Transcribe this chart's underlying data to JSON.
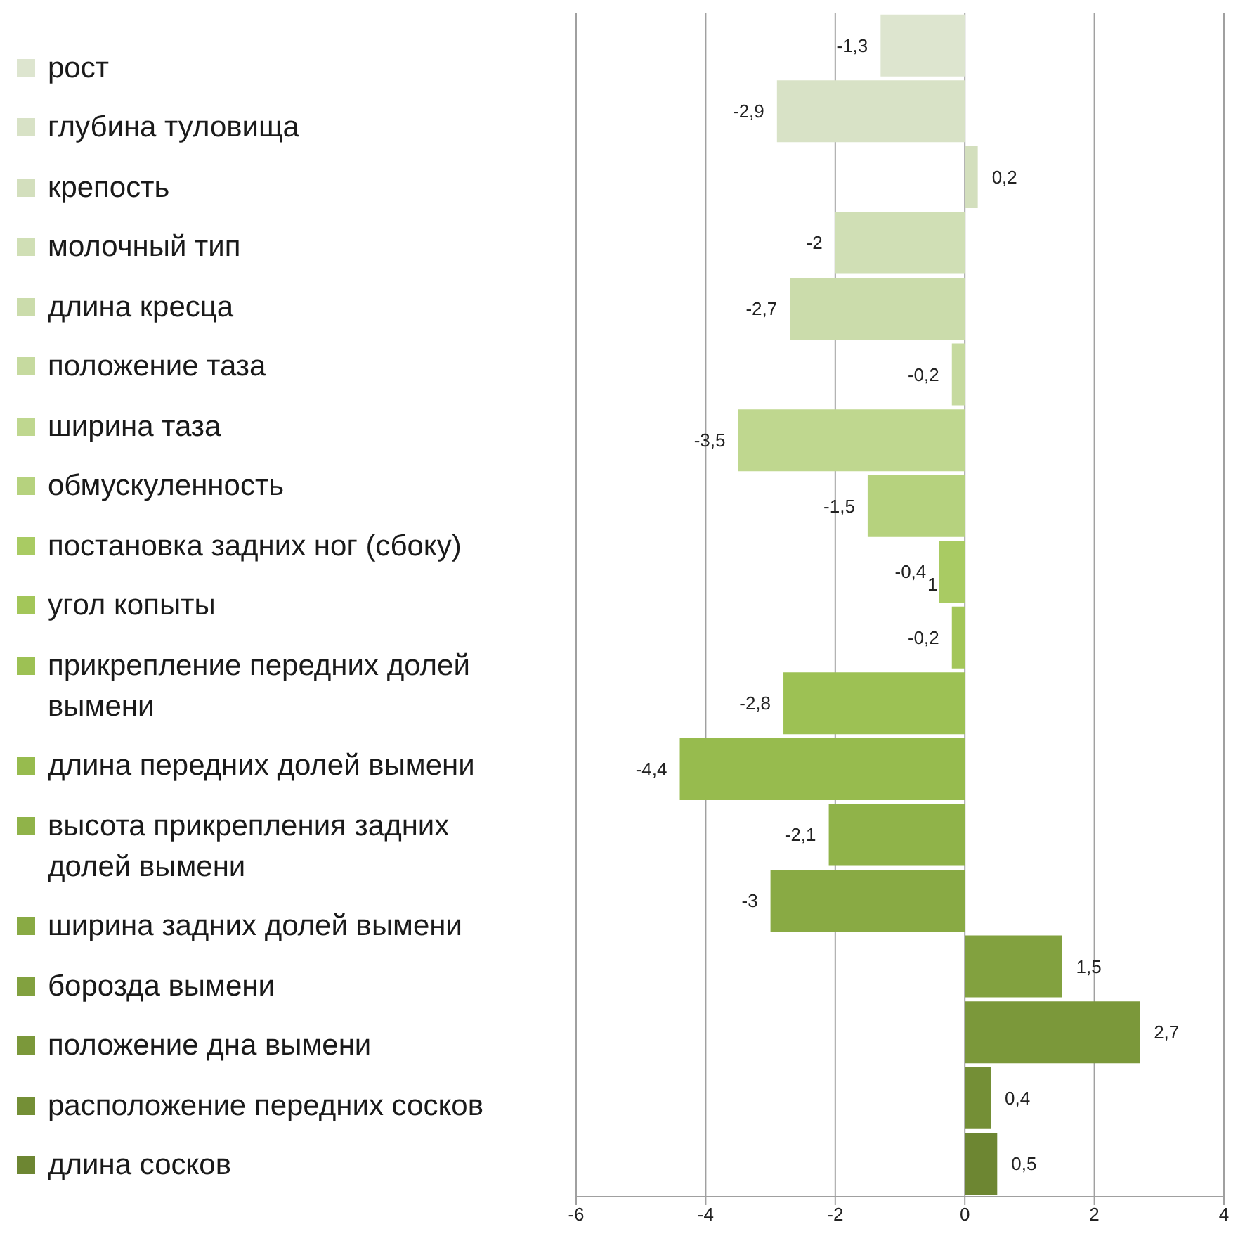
{
  "chart_data": {
    "type": "bar",
    "orientation": "horizontal",
    "stacked": true,
    "categories": [
      null,
      null,
      null,
      null,
      null,
      null,
      null,
      null,
      null,
      null,
      null,
      null,
      null,
      null,
      null,
      null,
      null,
      null
    ],
    "series": [
      {
        "name": "рост",
        "color": "#dde5cf",
        "values": [
          -1.3,
          null,
          null,
          null,
          null,
          null,
          null,
          null,
          null,
          null,
          null,
          null,
          null,
          null,
          null,
          null,
          null,
          null
        ],
        "value_labels": [
          "-1,3",
          null,
          null,
          null,
          null,
          null,
          null,
          null,
          null,
          null,
          null,
          null,
          null,
          null,
          null,
          null,
          null,
          null
        ]
      },
      {
        "name": "глубина туловища",
        "color": "#d8e2c6",
        "values": [
          null,
          -2.9,
          null,
          null,
          null,
          null,
          null,
          null,
          null,
          null,
          null,
          null,
          null,
          null,
          null,
          null,
          null,
          null
        ],
        "value_labels": [
          null,
          "-2,9",
          null,
          null,
          null,
          null,
          null,
          null,
          null,
          null,
          null,
          null,
          null,
          null,
          null,
          null,
          null,
          null
        ]
      },
      {
        "name": "крепость",
        "color": "#d3dfbd",
        "values": [
          null,
          null,
          0.2,
          null,
          null,
          null,
          null,
          null,
          null,
          null,
          null,
          null,
          null,
          null,
          null,
          null,
          null,
          null
        ],
        "value_labels": [
          null,
          null,
          "0,2",
          null,
          null,
          null,
          null,
          null,
          null,
          null,
          null,
          null,
          null,
          null,
          null,
          null,
          null,
          null
        ]
      },
      {
        "name": "молочный тип",
        "color": "#d0dfb5",
        "values": [
          null,
          null,
          null,
          -2,
          null,
          null,
          null,
          null,
          null,
          null,
          null,
          null,
          null,
          null,
          null,
          null,
          null,
          null
        ],
        "value_labels": [
          null,
          null,
          null,
          "-2",
          null,
          null,
          null,
          null,
          null,
          null,
          null,
          null,
          null,
          null,
          null,
          null,
          null,
          null
        ]
      },
      {
        "name": "длина кресца",
        "color": "#cbdcab",
        "values": [
          null,
          null,
          null,
          null,
          -2.7,
          null,
          null,
          null,
          null,
          null,
          null,
          null,
          null,
          null,
          null,
          null,
          null,
          null
        ],
        "value_labels": [
          null,
          null,
          null,
          null,
          "-2,7",
          null,
          null,
          null,
          null,
          null,
          null,
          null,
          null,
          null,
          null,
          null,
          null,
          null
        ]
      },
      {
        "name": "положение таза",
        "color": "#c6da9f",
        "values": [
          null,
          null,
          null,
          null,
          null,
          -0.2,
          null,
          null,
          null,
          null,
          null,
          null,
          null,
          null,
          null,
          null,
          null,
          null
        ],
        "value_labels": [
          null,
          null,
          null,
          null,
          null,
          "-0,2",
          null,
          null,
          null,
          null,
          null,
          null,
          null,
          null,
          null,
          null,
          null,
          null
        ]
      },
      {
        "name": "ширина таза",
        "color": "#bfd78f",
        "values": [
          null,
          null,
          null,
          null,
          null,
          null,
          -3.5,
          null,
          null,
          null,
          null,
          null,
          null,
          null,
          null,
          null,
          null,
          null
        ],
        "value_labels": [
          null,
          null,
          null,
          null,
          null,
          null,
          "-3,5",
          null,
          null,
          null,
          null,
          null,
          null,
          null,
          null,
          null,
          null,
          null
        ]
      },
      {
        "name": "обмускуленность",
        "color": "#b6d27e",
        "values": [
          null,
          null,
          null,
          null,
          null,
          null,
          null,
          -1.5,
          null,
          null,
          null,
          null,
          null,
          null,
          null,
          null,
          null,
          null
        ],
        "value_labels": [
          null,
          null,
          null,
          null,
          null,
          null,
          null,
          "-1,5",
          null,
          null,
          null,
          null,
          null,
          null,
          null,
          null,
          null,
          null
        ]
      },
      {
        "name": "постановка задних ног (сбоку)",
        "color": "#a9cb63",
        "values": [
          null,
          null,
          null,
          null,
          null,
          null,
          null,
          null,
          -0.4,
          null,
          null,
          null,
          null,
          null,
          null,
          null,
          null,
          null
        ],
        "value_labels": [
          null,
          null,
          null,
          null,
          null,
          null,
          null,
          null,
          "-0,4",
          null,
          null,
          null,
          null,
          null,
          null,
          null,
          null,
          null
        ]
      },
      {
        "name": "угол копыты",
        "color": "#a3c659",
        "values": [
          null,
          null,
          null,
          null,
          null,
          null,
          null,
          null,
          null,
          -0.2,
          null,
          null,
          null,
          null,
          null,
          null,
          null,
          null
        ],
        "value_labels": [
          null,
          null,
          null,
          null,
          null,
          null,
          null,
          null,
          null,
          "-0,2",
          null,
          null,
          null,
          null,
          null,
          null,
          null,
          null
        ]
      },
      {
        "name": "прикрепление передних долей вымени",
        "color": "#9dc154",
        "values": [
          null,
          null,
          null,
          null,
          null,
          null,
          null,
          null,
          null,
          null,
          -2.8,
          null,
          null,
          null,
          null,
          null,
          null,
          null
        ],
        "value_labels": [
          null,
          null,
          null,
          null,
          null,
          null,
          null,
          null,
          null,
          null,
          "-2,8",
          null,
          null,
          null,
          null,
          null,
          null,
          null
        ]
      },
      {
        "name": "длина передних долей вымени",
        "color": "#97bb4e",
        "values": [
          null,
          null,
          null,
          null,
          null,
          null,
          null,
          null,
          null,
          null,
          null,
          -4.4,
          null,
          null,
          null,
          null,
          null,
          null
        ],
        "value_labels": [
          null,
          null,
          null,
          null,
          null,
          null,
          null,
          null,
          null,
          null,
          null,
          "-4,4",
          null,
          null,
          null,
          null,
          null,
          null
        ]
      },
      {
        "name": "высота прикрепления задних долей вымени",
        "color": "#90b349",
        "values": [
          null,
          null,
          null,
          null,
          null,
          null,
          null,
          null,
          null,
          null,
          null,
          null,
          -2.1,
          null,
          null,
          null,
          null,
          null
        ],
        "value_labels": [
          null,
          null,
          null,
          null,
          null,
          null,
          null,
          null,
          null,
          null,
          null,
          null,
          "-2,1",
          null,
          null,
          null,
          null,
          null
        ]
      },
      {
        "name": "ширина задних долей вымени",
        "color": "#89aa44",
        "values": [
          null,
          null,
          null,
          null,
          null,
          null,
          null,
          null,
          null,
          null,
          null,
          null,
          null,
          -3,
          null,
          null,
          null,
          null
        ],
        "value_labels": [
          null,
          null,
          null,
          null,
          null,
          null,
          null,
          null,
          null,
          null,
          null,
          null,
          null,
          "-3",
          null,
          null,
          null,
          null
        ]
      },
      {
        "name": "борозда вымени",
        "color": "#82a13f",
        "values": [
          null,
          null,
          null,
          null,
          null,
          null,
          null,
          null,
          null,
          null,
          null,
          null,
          null,
          null,
          1.5,
          null,
          null,
          null
        ],
        "value_labels": [
          null,
          null,
          null,
          null,
          null,
          null,
          null,
          null,
          null,
          null,
          null,
          null,
          null,
          null,
          "1,5",
          null,
          null,
          null
        ]
      },
      {
        "name": "положение дна вымени",
        "color": "#7b983a",
        "values": [
          null,
          null,
          null,
          null,
          null,
          null,
          null,
          null,
          null,
          null,
          null,
          null,
          null,
          null,
          null,
          2.7,
          null,
          null
        ],
        "value_labels": [
          null,
          null,
          null,
          null,
          null,
          null,
          null,
          null,
          null,
          null,
          null,
          null,
          null,
          null,
          null,
          "2,7",
          null,
          null
        ]
      },
      {
        "name": "расположение передних сосков",
        "color": "#748f36",
        "values": [
          null,
          null,
          null,
          null,
          null,
          null,
          null,
          null,
          null,
          null,
          null,
          null,
          null,
          null,
          null,
          null,
          0.4,
          null
        ],
        "value_labels": [
          null,
          null,
          null,
          null,
          null,
          null,
          null,
          null,
          null,
          null,
          null,
          null,
          null,
          null,
          null,
          null,
          "0,4",
          null
        ]
      },
      {
        "name": "длина сосков",
        "color": "#6d8632",
        "values": [
          null,
          null,
          null,
          null,
          null,
          null,
          null,
          null,
          null,
          null,
          null,
          null,
          null,
          null,
          null,
          null,
          null,
          0.5
        ],
        "value_labels": [
          null,
          null,
          null,
          null,
          null,
          null,
          null,
          null,
          null,
          null,
          null,
          null,
          null,
          null,
          null,
          null,
          null,
          "0,5"
        ]
      }
    ],
    "xlim": [
      -6,
      4
    ],
    "xticks": [
      -6,
      -4,
      -2,
      0,
      2,
      4
    ],
    "grid": "x",
    "legend": "left",
    "tick_labels": "x",
    "annotations": [
      "1"
    ]
  }
}
